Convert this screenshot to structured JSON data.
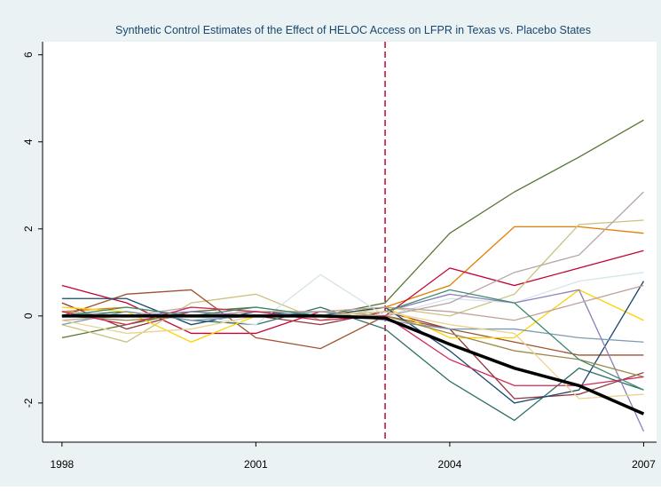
{
  "chart_data": {
    "type": "line",
    "title": "Synthetic Control Estimates of the Effect of HELOC Access on LFPR in Texas vs. Placebo States",
    "x": [
      1998,
      1999,
      2000,
      2001,
      2002,
      2003,
      2004,
      2005,
      2006,
      2007
    ],
    "xlim": [
      1997.7,
      2007.2
    ],
    "xticks": [
      1998,
      2001,
      2004,
      2007
    ],
    "ylim": [
      -2.9,
      6.3
    ],
    "yticks": [
      -2,
      0,
      2,
      4,
      6
    ],
    "grid": false,
    "vline": 2003,
    "vline_color": "#c10534",
    "series": [
      {
        "color": "#55752f",
        "values": [
          -0.5,
          -0.2,
          0.1,
          0.2,
          0.0,
          0.3,
          1.9,
          2.85,
          3.65,
          4.5
        ]
      },
      {
        "color": "#e37e00",
        "values": [
          0.1,
          0.2,
          0.0,
          0.1,
          0.0,
          0.2,
          0.7,
          2.05,
          2.05,
          1.9
        ]
      },
      {
        "color": "#c10534",
        "values": [
          0.7,
          0.3,
          -0.4,
          -0.4,
          0.1,
          0.0,
          1.1,
          0.7,
          1.1,
          1.5
        ]
      },
      {
        "color": "#90353b",
        "values": [
          0.3,
          -0.3,
          0.1,
          0.0,
          -0.2,
          0.1,
          -0.3,
          -1.9,
          -1.8,
          -1.3
        ]
      },
      {
        "color": "#2d6d66",
        "values": [
          0.0,
          0.1,
          -0.1,
          -0.2,
          0.2,
          -0.3,
          -1.5,
          -2.4,
          -1.2,
          -1.7
        ]
      },
      {
        "color": "#cac27e",
        "values": [
          -0.2,
          -0.6,
          0.3,
          0.5,
          -0.1,
          0.2,
          0.0,
          0.5,
          2.1,
          2.2
        ]
      },
      {
        "color": "#a0522d",
        "values": [
          0.0,
          0.5,
          0.6,
          -0.5,
          -0.75,
          0.0,
          -0.3,
          -0.6,
          -0.9,
          -0.9
        ]
      },
      {
        "color": "#ffd200",
        "values": [
          0.2,
          0.1,
          -0.6,
          0.0,
          0.0,
          0.2,
          -0.5,
          -0.5,
          0.6,
          -0.1
        ]
      },
      {
        "color": "#1a476f",
        "values": [
          0.4,
          0.4,
          -0.2,
          0.1,
          0.0,
          0.2,
          -0.8,
          -2.0,
          -1.7,
          0.8
        ]
      },
      {
        "color": "#d5e3ea",
        "values": [
          0.0,
          0.2,
          0.0,
          -0.2,
          0.95,
          0.0,
          0.4,
          0.3,
          0.8,
          1.0
        ]
      },
      {
        "color": "#b5a6a4",
        "values": [
          0.1,
          0.0,
          0.0,
          0.1,
          0.1,
          0.0,
          0.3,
          1.0,
          1.4,
          2.85
        ]
      },
      {
        "color": "#7a9bb5",
        "values": [
          -0.2,
          0.1,
          -0.1,
          0.0,
          0.1,
          -0.1,
          -0.3,
          -0.3,
          -0.5,
          -0.6
        ]
      },
      {
        "color": "#8a7fb8",
        "values": [
          0.0,
          0.0,
          0.1,
          0.0,
          0.0,
          0.1,
          0.5,
          0.3,
          0.6,
          -2.65
        ]
      },
      {
        "color": "#9c8847",
        "values": [
          0.0,
          -0.1,
          0.0,
          0.0,
          0.0,
          0.0,
          -0.4,
          -0.8,
          -1.0,
          -1.4
        ]
      },
      {
        "color": "#bfa19c",
        "values": [
          -0.1,
          0.0,
          0.2,
          0.1,
          0.1,
          0.2,
          0.1,
          -0.1,
          0.3,
          0.7
        ]
      },
      {
        "color": "#d1275a",
        "values": [
          0.1,
          -0.2,
          0.2,
          0.1,
          -0.1,
          0.0,
          -1.0,
          -1.6,
          -1.6,
          -1.4
        ]
      },
      {
        "color": "#3e8a6d",
        "values": [
          0.0,
          0.2,
          0.0,
          0.2,
          0.0,
          0.1,
          0.6,
          0.3,
          -1.0,
          -1.7
        ]
      },
      {
        "color": "#ead38f",
        "values": [
          -0.1,
          -0.4,
          -0.3,
          0.0,
          0.0,
          0.1,
          -0.2,
          -0.4,
          -1.9,
          -1.8
        ]
      },
      {
        "color": "#000000",
        "width": 3.5,
        "values": [
          0.0,
          0.0,
          0.0,
          0.0,
          0.0,
          -0.05,
          -0.65,
          -1.2,
          -1.6,
          -2.25
        ]
      }
    ]
  }
}
